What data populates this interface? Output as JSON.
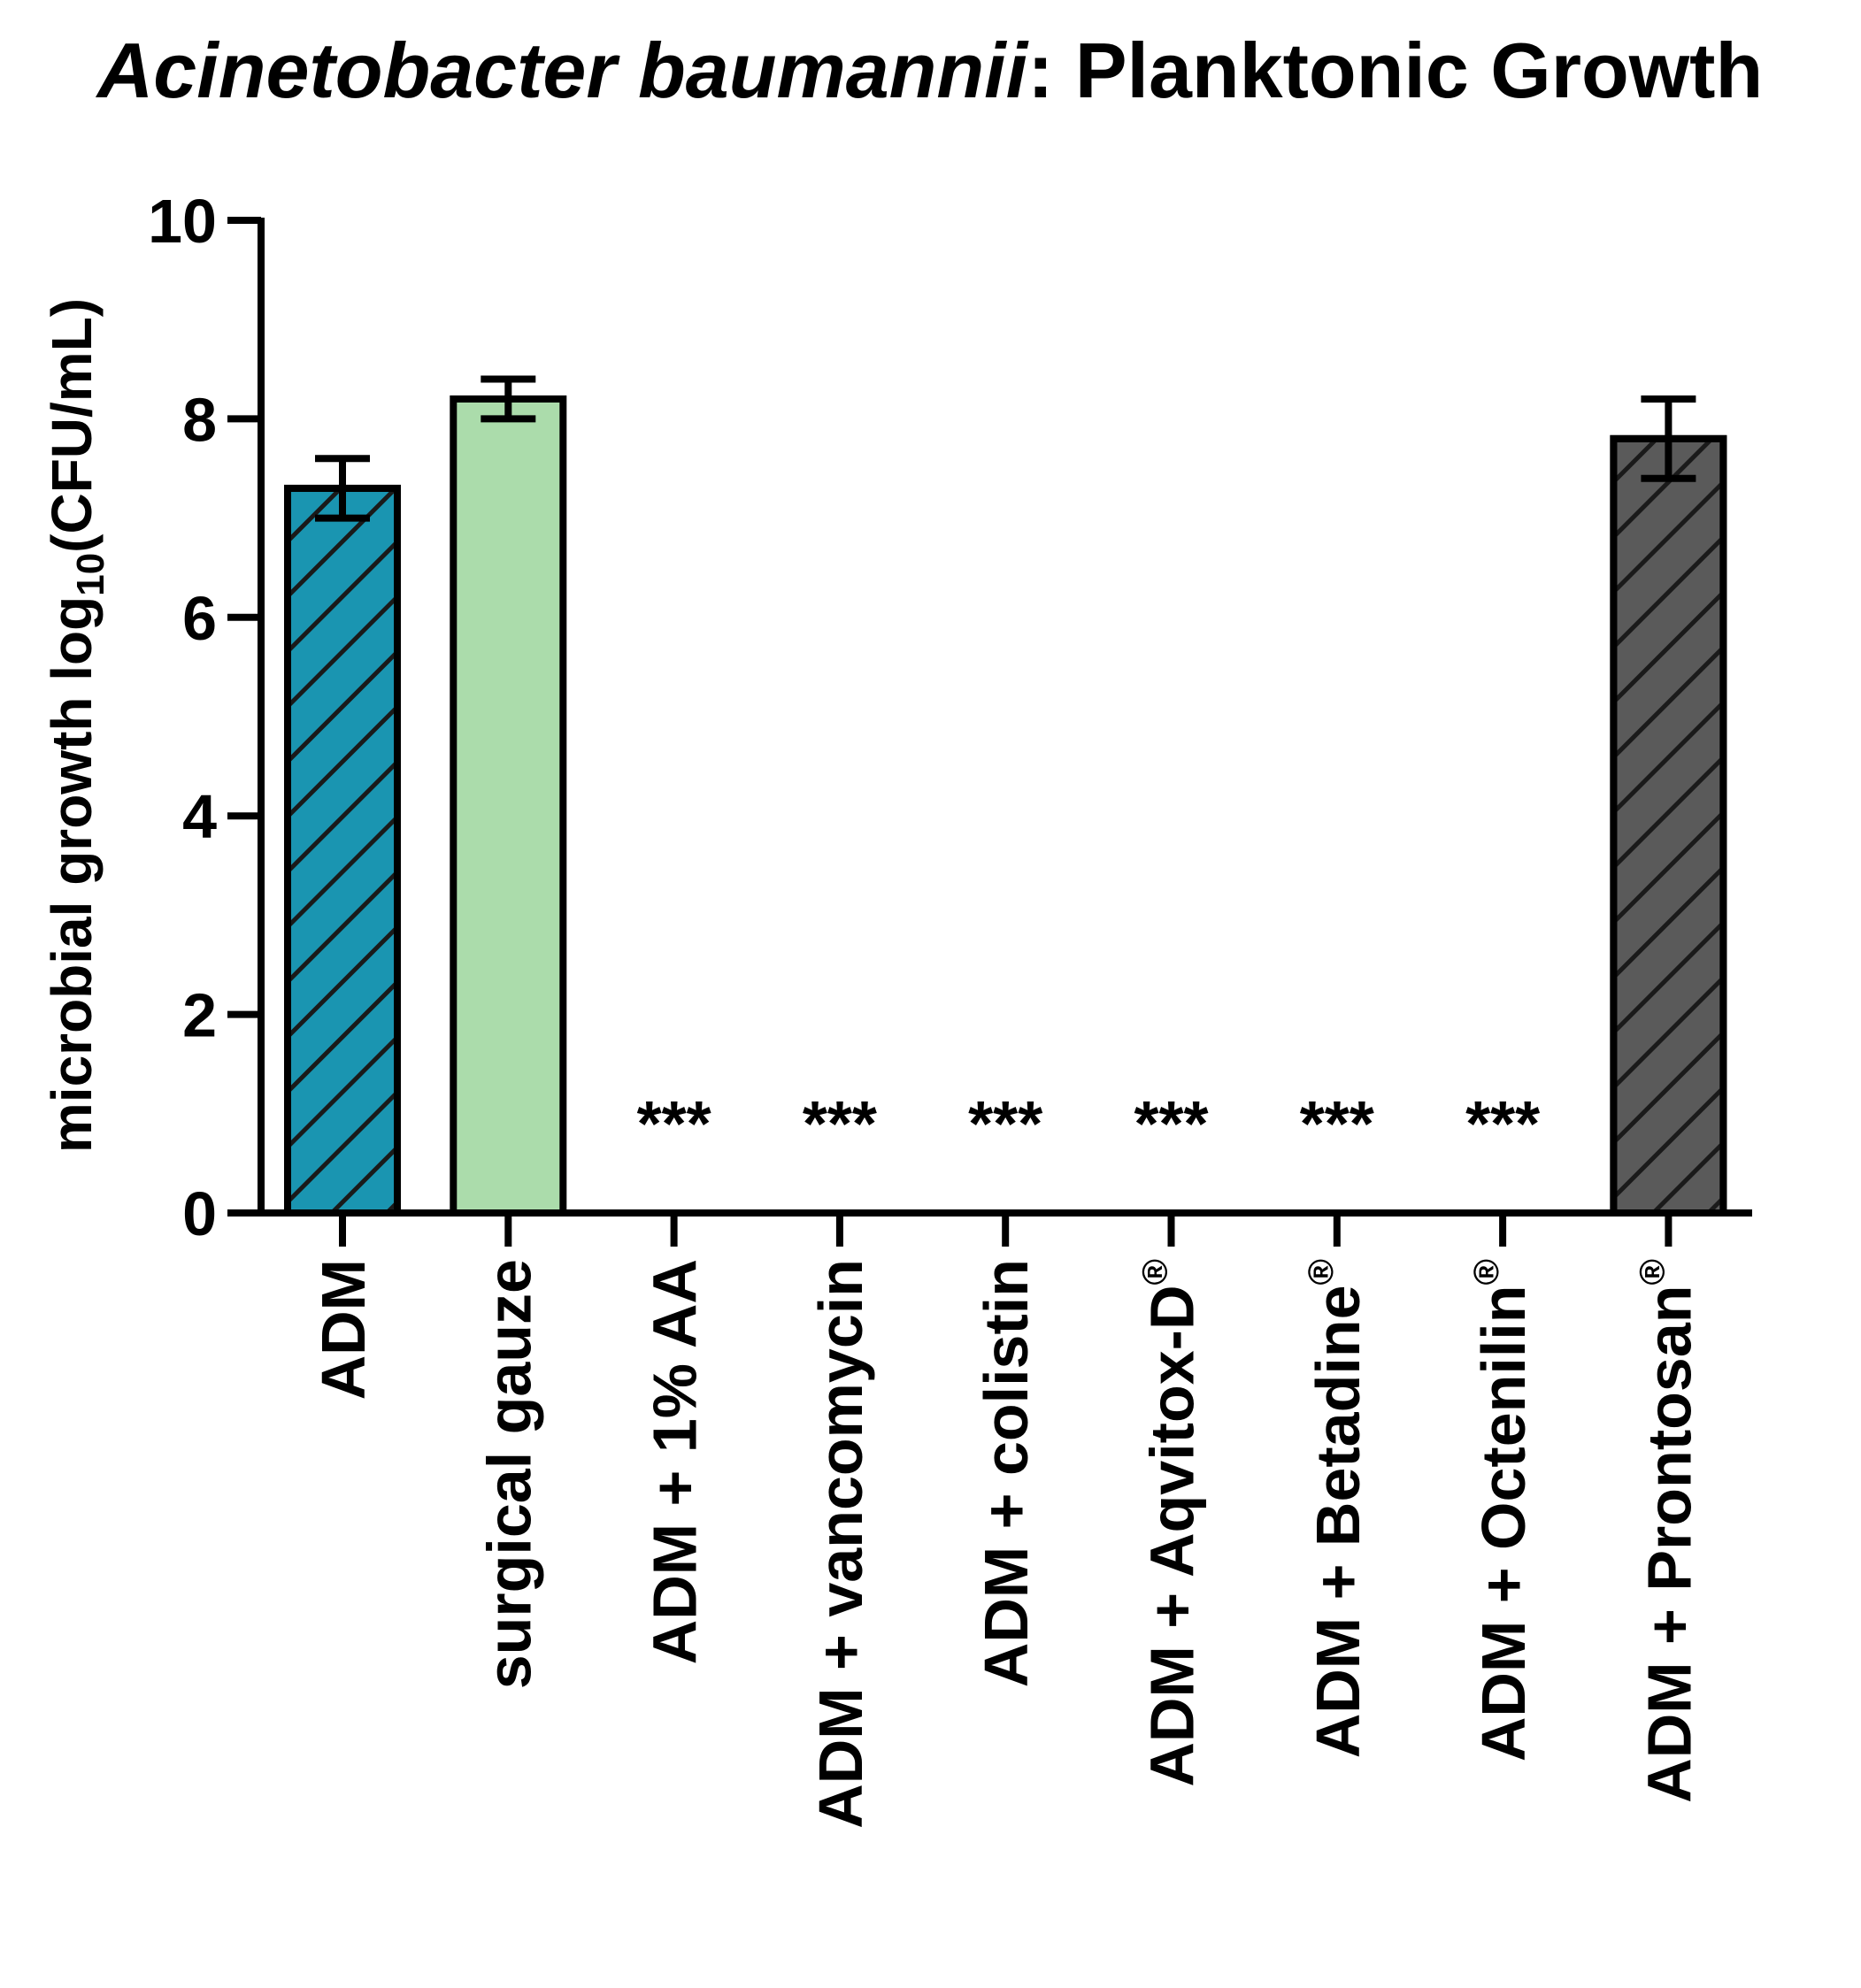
{
  "chart_data": {
    "type": "bar",
    "title_italic": "Acinetobacter baumannii",
    "title_rest": ": Planktonic Growth",
    "ylabel_main": "microbial growth log",
    "ylabel_sub": "10",
    "ylabel_end": "(CFU/mL)",
    "xlabel": "",
    "ylim": [
      0,
      10
    ],
    "yticks": [
      0,
      2,
      4,
      6,
      8,
      10
    ],
    "grid": false,
    "categories": [
      "ADM",
      "surgical gauze",
      "ADM + 1% AA",
      "ADM + vancomycin",
      "ADM + colistin",
      "ADM + Aqvitox-D",
      "ADM + Betadine",
      "ADM + Octenilin",
      "ADM + Prontosan"
    ],
    "registered_mark": [
      false,
      false,
      false,
      false,
      false,
      true,
      true,
      true,
      true
    ],
    "registered_symbol": "®",
    "values": [
      7.3,
      8.2,
      0,
      0,
      0,
      0,
      0,
      0,
      7.8
    ],
    "errors": [
      0.3,
      0.2,
      null,
      null,
      null,
      null,
      null,
      null,
      0.4
    ],
    "annotations": [
      "",
      "",
      "***",
      "***",
      "***",
      "***",
      "***",
      "***",
      ""
    ],
    "colors": [
      "#1a95b1",
      "#abdcab",
      "#ffffff",
      "#ffffff",
      "#ffffff",
      "#ffffff",
      "#ffffff",
      "#ffffff",
      "#5a5a5a"
    ],
    "hatched": [
      true,
      false,
      false,
      false,
      false,
      false,
      false,
      false,
      true
    ]
  }
}
